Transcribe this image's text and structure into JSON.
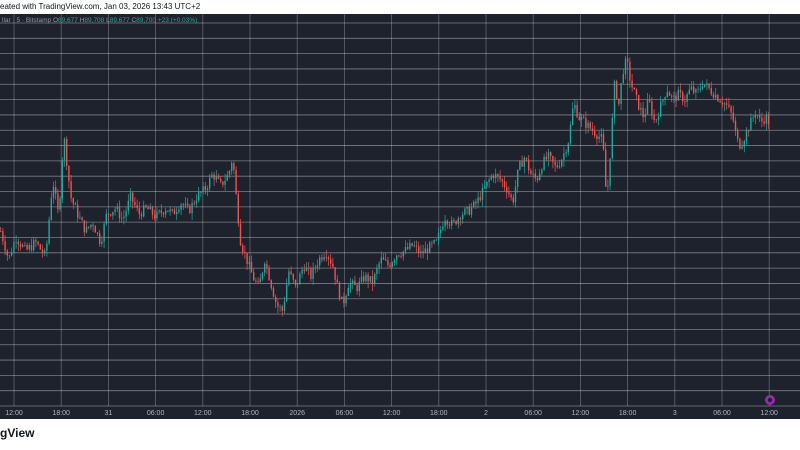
{
  "caption": "eated with TradingView.com, Jan 03, 2026 13:43 UTC+2",
  "brand": "gView",
  "legend": {
    "symbol_text": "llar · 5 · Bitstamp",
    "o": "89,677",
    "h": "89,708",
    "l": "89,677",
    "c": "89,700",
    "change": "+23 (+0.03%)"
  },
  "colors": {
    "background": "#1e222d",
    "grid": "#ffffff",
    "up": "#26a69a",
    "down": "#ef5350",
    "marker": "#9c27b0"
  },
  "chart_data": {
    "type": "candlestick",
    "xlabel": "",
    "ylabel": "",
    "x_tick_labels": [
      "12:00",
      "18:00",
      "31",
      "06:00",
      "12:00",
      "18:00",
      "2026",
      "06:00",
      "12:00",
      "18:00",
      "2",
      "06:00",
      "12:00",
      "18:00",
      "3",
      "06:00",
      "12:00"
    ],
    "y_tick_labels": [],
    "grid": true,
    "price_trace_relative": [
      [
        0,
        0.4
      ],
      [
        8,
        0.3
      ],
      [
        15,
        0.38
      ],
      [
        25,
        0.33
      ],
      [
        35,
        0.36
      ],
      [
        45,
        0.31
      ],
      [
        52,
        0.58
      ],
      [
        58,
        0.45
      ],
      [
        63,
        0.74
      ],
      [
        70,
        0.52
      ],
      [
        78,
        0.45
      ],
      [
        85,
        0.4
      ],
      [
        92,
        0.43
      ],
      [
        100,
        0.36
      ],
      [
        106,
        0.46
      ],
      [
        115,
        0.48
      ],
      [
        122,
        0.44
      ],
      [
        130,
        0.52
      ],
      [
        138,
        0.46
      ],
      [
        146,
        0.48
      ],
      [
        155,
        0.45
      ],
      [
        165,
        0.48
      ],
      [
        172,
        0.46
      ],
      [
        180,
        0.5
      ],
      [
        188,
        0.47
      ],
      [
        196,
        0.52
      ],
      [
        205,
        0.55
      ],
      [
        212,
        0.6
      ],
      [
        220,
        0.56
      ],
      [
        228,
        0.6
      ],
      [
        232,
        0.66
      ],
      [
        236,
        0.5
      ],
      [
        240,
        0.36
      ],
      [
        246,
        0.3
      ],
      [
        252,
        0.24
      ],
      [
        258,
        0.2
      ],
      [
        264,
        0.3
      ],
      [
        270,
        0.22
      ],
      [
        276,
        0.14
      ],
      [
        282,
        0.12
      ],
      [
        288,
        0.26
      ],
      [
        295,
        0.2
      ],
      [
        303,
        0.28
      ],
      [
        310,
        0.24
      ],
      [
        318,
        0.3
      ],
      [
        325,
        0.33
      ],
      [
        332,
        0.28
      ],
      [
        337,
        0.2
      ],
      [
        342,
        0.14
      ],
      [
        348,
        0.22
      ],
      [
        356,
        0.2
      ],
      [
        364,
        0.24
      ],
      [
        372,
        0.22
      ],
      [
        380,
        0.3
      ],
      [
        388,
        0.28
      ],
      [
        396,
        0.32
      ],
      [
        404,
        0.33
      ],
      [
        412,
        0.35
      ],
      [
        420,
        0.32
      ],
      [
        428,
        0.34
      ],
      [
        436,
        0.36
      ],
      [
        444,
        0.45
      ],
      [
        452,
        0.42
      ],
      [
        460,
        0.46
      ],
      [
        468,
        0.47
      ],
      [
        476,
        0.5
      ],
      [
        484,
        0.55
      ],
      [
        492,
        0.6
      ],
      [
        500,
        0.58
      ],
      [
        506,
        0.55
      ],
      [
        512,
        0.5
      ],
      [
        518,
        0.62
      ],
      [
        524,
        0.66
      ],
      [
        530,
        0.6
      ],
      [
        536,
        0.58
      ],
      [
        542,
        0.64
      ],
      [
        548,
        0.66
      ],
      [
        555,
        0.62
      ],
      [
        562,
        0.66
      ],
      [
        568,
        0.72
      ],
      [
        573,
        0.85
      ],
      [
        578,
        0.8
      ],
      [
        584,
        0.78
      ],
      [
        590,
        0.76
      ],
      [
        596,
        0.74
      ],
      [
        602,
        0.72
      ],
      [
        606,
        0.5
      ],
      [
        610,
        0.7
      ],
      [
        614,
        0.92
      ],
      [
        618,
        0.84
      ],
      [
        622,
        0.96
      ],
      [
        626,
        1.0
      ],
      [
        630,
        0.92
      ],
      [
        634,
        0.88
      ],
      [
        638,
        0.84
      ],
      [
        643,
        0.8
      ],
      [
        648,
        0.86
      ],
      [
        654,
        0.78
      ],
      [
        660,
        0.84
      ],
      [
        666,
        0.9
      ],
      [
        672,
        0.86
      ],
      [
        678,
        0.88
      ],
      [
        684,
        0.86
      ],
      [
        690,
        0.9
      ],
      [
        696,
        0.88
      ],
      [
        702,
        0.92
      ],
      [
        708,
        0.9
      ],
      [
        714,
        0.88
      ],
      [
        720,
        0.86
      ],
      [
        726,
        0.84
      ],
      [
        732,
        0.8
      ],
      [
        736,
        0.72
      ],
      [
        740,
        0.7
      ],
      [
        745,
        0.74
      ],
      [
        750,
        0.78
      ],
      [
        755,
        0.82
      ],
      [
        760,
        0.78
      ],
      [
        765,
        0.8
      ],
      [
        770,
        0.77
      ]
    ]
  }
}
